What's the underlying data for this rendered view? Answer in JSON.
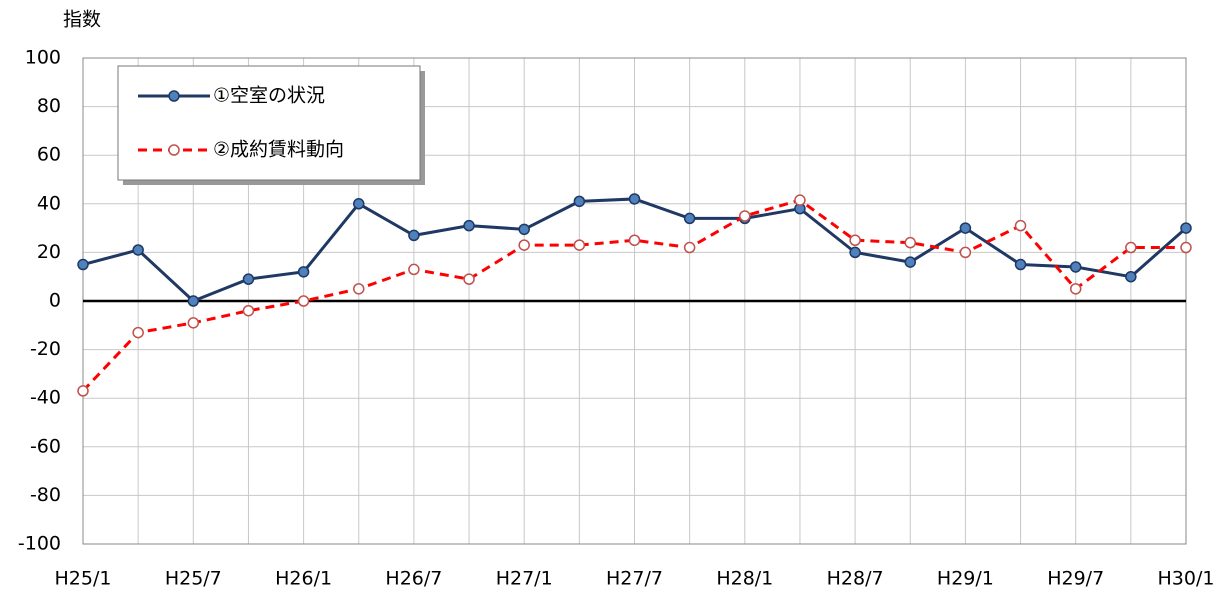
{
  "chart_data": {
    "type": "line",
    "ylabel": "指数",
    "categories": [
      "H25/1",
      null,
      "H25/7",
      null,
      "H26/1",
      null,
      "H26/7",
      null,
      "H27/1",
      null,
      "H27/7",
      null,
      "H28/1",
      null,
      "H28/7",
      null,
      "H29/1",
      null,
      "H29/7",
      null,
      "H30/1"
    ],
    "series": [
      {
        "name": "①空室の状況",
        "color": "#1f3864",
        "marker_fill": "#4f81bd",
        "line_style": "solid",
        "values": [
          15,
          21,
          0,
          9,
          12,
          40,
          27,
          31,
          29.5,
          41,
          42,
          34,
          34,
          38,
          20,
          16,
          30,
          15,
          14,
          10,
          30
        ]
      },
      {
        "name": "②成約賃料動向",
        "color": "#ff0000",
        "marker_fill": "#ffffff",
        "line_style": "dashed",
        "values": [
          -37,
          -13,
          -9,
          -4,
          0,
          5,
          13,
          9,
          23,
          23,
          25,
          22,
          35,
          41.5,
          25,
          24,
          20,
          31,
          5,
          22,
          22
        ]
      }
    ],
    "ylim": [
      -100,
      100
    ],
    "yticks": [
      -100,
      -80,
      -60,
      -40,
      -20,
      0,
      20,
      40,
      60,
      80,
      100
    ],
    "grid": true,
    "legend": "upper left"
  }
}
